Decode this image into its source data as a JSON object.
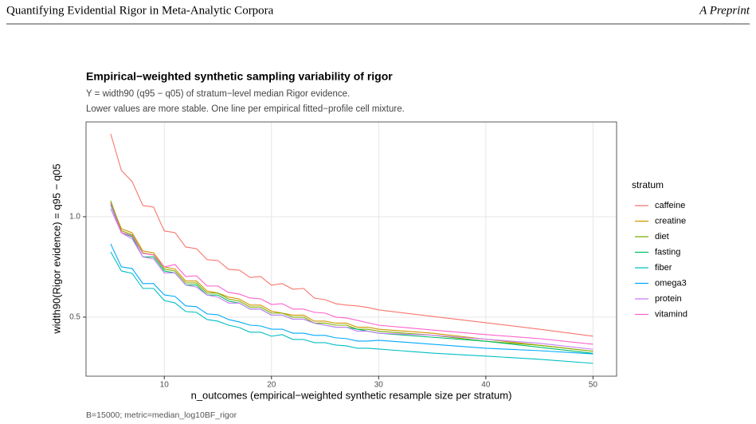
{
  "header": {
    "title": "Quantifying Evidential Rigor in Meta-Analytic Corpora",
    "right": "A Preprint"
  },
  "chart_data": {
    "type": "line",
    "title": "Empirical−weighted synthetic sampling variability of rigor",
    "subtitle": [
      "Y = width90 (q95 − q05) of stratum−level median Rigor evidence.",
      "Lower values are more stable. One line per empirical fitted−profile cell mixture."
    ],
    "x_label": "n_outcomes (empirical−weighted synthetic resample size per stratum)",
    "y_label": "width90(Rigor evidence) = q95 − q05",
    "caption": "B=15000; metric=median_log10BF_rigor",
    "legend_title": "stratum",
    "grid": true,
    "xlim": [
      2.7,
      52.2
    ],
    "xticks": [
      10,
      20,
      30,
      40,
      50
    ],
    "ylim": [
      0.206,
      1.472
    ],
    "yticks": [
      0.5,
      {
        "value": 1,
        "label": "1.0"
      }
    ],
    "x": [
      5,
      6,
      7,
      8,
      9,
      10,
      11,
      12,
      13,
      14,
      15,
      16,
      17,
      18,
      19,
      20,
      21,
      22,
      23,
      24,
      25,
      26,
      27,
      28,
      29,
      30,
      35,
      40,
      45,
      50
    ],
    "series": [
      {
        "name": "caffeine",
        "color": "#F8766D",
        "values": [
          1.413,
          1.23,
          1.175,
          1.056,
          1.048,
          0.929,
          0.921,
          0.849,
          0.841,
          0.786,
          0.782,
          0.738,
          0.734,
          0.698,
          0.702,
          0.659,
          0.667,
          0.639,
          0.643,
          0.595,
          0.587,
          0.567,
          0.56,
          0.556,
          0.548,
          0.536,
          0.504,
          0.472,
          0.44,
          0.405
        ]
      },
      {
        "name": "creatine",
        "color": "#CD9600",
        "values": [
          1.07,
          0.94,
          0.92,
          0.83,
          0.82,
          0.75,
          0.74,
          0.68,
          0.68,
          0.63,
          0.62,
          0.6,
          0.59,
          0.56,
          0.56,
          0.53,
          0.52,
          0.51,
          0.51,
          0.48,
          0.48,
          0.47,
          0.47,
          0.45,
          0.45,
          0.44,
          0.42,
          0.39,
          0.36,
          0.33
        ]
      },
      {
        "name": "diet",
        "color": "#7CAE00",
        "values": [
          1.08,
          0.93,
          0.91,
          0.82,
          0.81,
          0.74,
          0.73,
          0.67,
          0.67,
          0.62,
          0.62,
          0.59,
          0.58,
          0.55,
          0.55,
          0.52,
          0.52,
          0.5,
          0.5,
          0.47,
          0.47,
          0.46,
          0.46,
          0.44,
          0.44,
          0.43,
          0.41,
          0.38,
          0.36,
          0.33
        ]
      },
      {
        "name": "fasting",
        "color": "#00BE67",
        "values": [
          1.06,
          0.92,
          0.9,
          0.8,
          0.8,
          0.73,
          0.72,
          0.66,
          0.66,
          0.61,
          0.61,
          0.58,
          0.57,
          0.54,
          0.54,
          0.51,
          0.51,
          0.49,
          0.49,
          0.47,
          0.46,
          0.45,
          0.45,
          0.44,
          0.43,
          0.42,
          0.4,
          0.38,
          0.35,
          0.32
        ]
      },
      {
        "name": "fiber",
        "color": "#00BFC4",
        "values": [
          0.825,
          0.73,
          0.718,
          0.643,
          0.643,
          0.583,
          0.571,
          0.528,
          0.524,
          0.488,
          0.48,
          0.46,
          0.448,
          0.425,
          0.425,
          0.405,
          0.413,
          0.389,
          0.389,
          0.373,
          0.373,
          0.361,
          0.357,
          0.345,
          0.345,
          0.341,
          0.321,
          0.306,
          0.29,
          0.27
        ]
      },
      {
        "name": "omega3",
        "color": "#00A9FF",
        "values": [
          0.865,
          0.75,
          0.742,
          0.667,
          0.667,
          0.611,
          0.603,
          0.556,
          0.552,
          0.516,
          0.512,
          0.488,
          0.476,
          0.46,
          0.456,
          0.44,
          0.44,
          0.42,
          0.42,
          0.409,
          0.409,
          0.397,
          0.393,
          0.381,
          0.381,
          0.385,
          0.365,
          0.345,
          0.333,
          0.317
        ]
      },
      {
        "name": "protein",
        "color": "#C77CFF",
        "values": [
          1.04,
          0.92,
          0.89,
          0.8,
          0.79,
          0.72,
          0.72,
          0.66,
          0.65,
          0.61,
          0.6,
          0.57,
          0.57,
          0.54,
          0.54,
          0.51,
          0.51,
          0.49,
          0.49,
          0.47,
          0.46,
          0.45,
          0.45,
          0.43,
          0.43,
          0.42,
          0.41,
          0.39,
          0.37,
          0.34
        ]
      },
      {
        "name": "vitamind",
        "color": "#FF61CC",
        "values": [
          1.067,
          0.921,
          0.905,
          0.817,
          0.81,
          0.75,
          0.762,
          0.702,
          0.706,
          0.655,
          0.655,
          0.623,
          0.615,
          0.595,
          0.591,
          0.563,
          0.567,
          0.54,
          0.54,
          0.524,
          0.52,
          0.5,
          0.496,
          0.484,
          0.472,
          0.46,
          0.436,
          0.413,
          0.393,
          0.365
        ]
      }
    ]
  }
}
